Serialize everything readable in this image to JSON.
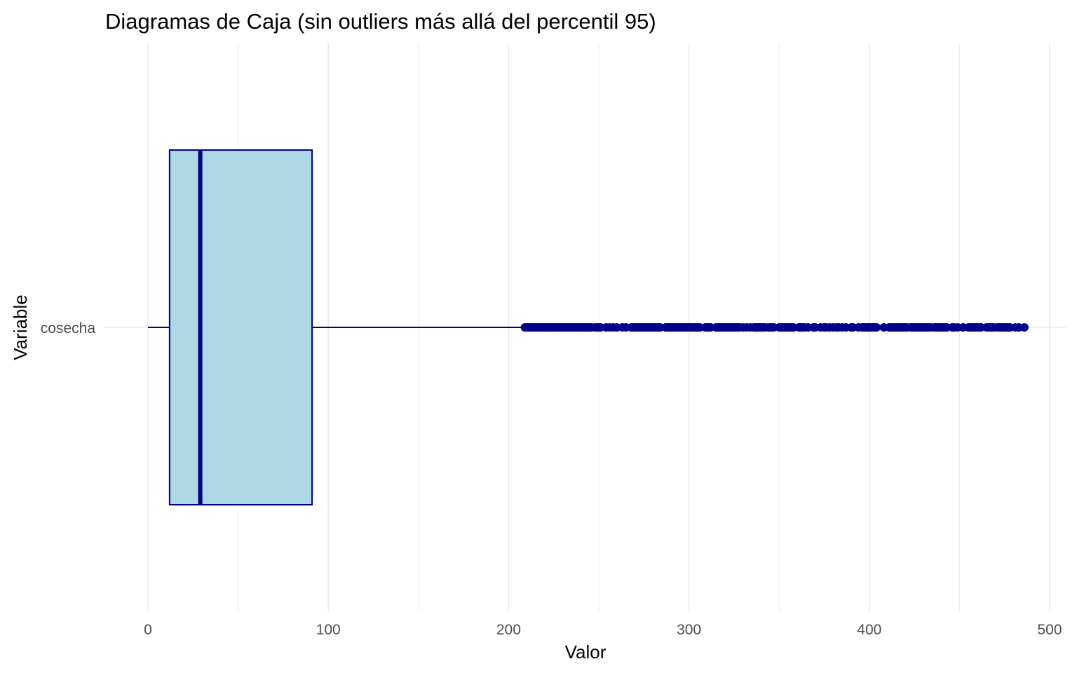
{
  "chart_data": {
    "type": "boxplot",
    "title": "Diagramas de Caja (sin outliers más allá del percentil 95)",
    "xlabel": "Valor",
    "ylabel": "Variable",
    "orientation": "horizontal",
    "xlim": [
      -5,
      508
    ],
    "x_ticks": [
      0,
      100,
      200,
      300,
      400,
      500
    ],
    "grid": true,
    "categories": [
      "cosecha"
    ],
    "boxes": [
      {
        "category": "cosecha",
        "whisker_low": 0,
        "q1": 12,
        "median": 29,
        "q3": 91,
        "whisker_high": 208,
        "outliers": [
          209,
          210,
          211,
          212,
          213,
          214,
          215,
          216,
          217,
          218,
          219,
          220,
          221,
          222,
          223,
          224,
          225,
          226,
          227,
          228,
          229,
          230,
          231,
          232,
          233,
          234,
          235,
          236,
          237,
          238,
          239,
          240,
          241,
          242,
          243,
          244,
          245,
          246,
          248,
          249,
          250,
          251,
          254,
          256,
          258,
          260,
          263,
          265,
          268,
          269,
          270,
          271,
          272,
          273,
          274,
          275,
          276,
          277,
          278,
          279,
          280,
          281,
          282,
          283,
          284,
          287,
          288,
          289,
          290,
          291,
          292,
          293,
          294,
          295,
          296,
          297,
          298,
          299,
          300,
          301,
          302,
          303,
          304,
          305,
          306,
          309,
          310,
          311,
          312,
          315,
          316,
          317,
          318,
          319,
          320,
          321,
          322,
          323,
          324,
          325,
          326,
          327,
          328,
          330,
          332,
          334,
          336,
          337,
          338,
          339,
          340,
          341,
          342,
          344,
          345,
          346,
          347,
          350,
          351,
          352,
          353,
          354,
          355,
          356,
          357,
          358,
          361,
          362,
          363,
          364,
          366,
          369,
          370,
          373,
          375,
          376,
          378,
          380,
          382,
          383,
          385,
          387,
          390,
          391,
          394,
          396,
          397,
          398,
          399,
          400,
          401,
          402,
          403,
          404,
          408,
          411,
          412,
          413,
          414,
          415,
          416,
          417,
          418,
          419,
          420,
          421,
          423,
          424,
          425,
          426,
          427,
          428,
          429,
          430,
          431,
          432,
          433,
          434,
          436,
          437,
          438,
          439,
          440,
          441,
          442,
          443,
          446,
          447,
          449,
          452,
          455,
          456,
          457,
          458,
          459,
          460,
          461,
          462,
          465,
          466,
          467,
          468,
          469,
          471,
          472,
          473,
          474,
          475,
          476,
          477,
          478,
          481,
          483,
          486
        ]
      }
    ],
    "colors": {
      "box_fill": "#add8e6",
      "box_stroke": "#00008b",
      "grid": "#ebebeb"
    }
  }
}
